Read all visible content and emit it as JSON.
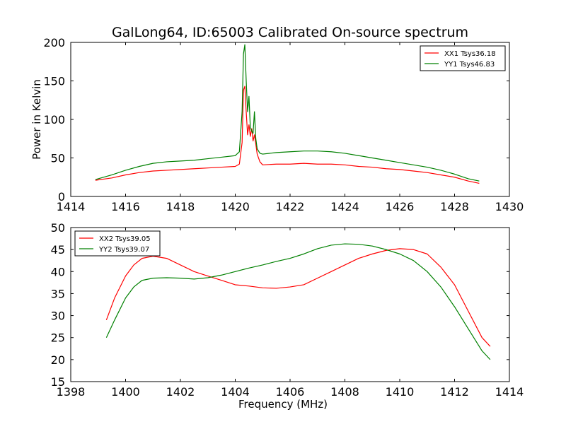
{
  "figure": {
    "title": "GalLong64, ID:65003 Calibrated On-source spectrum"
  },
  "chart_data": [
    {
      "type": "line",
      "title": "GalLong64, ID:65003 Calibrated On-source spectrum",
      "xlabel": "",
      "ylabel": "Power in Kelvin",
      "xlim": [
        1414,
        1430
      ],
      "ylim": [
        0,
        200
      ],
      "xticks": [
        1414,
        1416,
        1418,
        1420,
        1422,
        1424,
        1426,
        1428,
        1430
      ],
      "yticks": [
        0,
        50,
        100,
        150,
        200
      ],
      "grid": false,
      "legend_position": "top-right",
      "series": [
        {
          "name": "XX1 Tsys36.18",
          "color": "#ff0000",
          "x": [
            1414.9,
            1415.5,
            1416.0,
            1416.5,
            1417.0,
            1417.5,
            1418.0,
            1418.5,
            1419.0,
            1419.5,
            1420.0,
            1420.15,
            1420.25,
            1420.3,
            1420.35,
            1420.4,
            1420.45,
            1420.5,
            1420.55,
            1420.6,
            1420.65,
            1420.7,
            1420.75,
            1420.8,
            1420.9,
            1421.0,
            1421.5,
            1422.0,
            1422.5,
            1423.0,
            1423.5,
            1424.0,
            1424.5,
            1425.0,
            1425.5,
            1426.0,
            1426.5,
            1427.0,
            1427.5,
            1428.0,
            1428.5,
            1428.9
          ],
          "y": [
            21,
            24,
            28,
            31,
            33,
            34,
            35,
            36,
            37,
            38,
            39,
            42,
            70,
            138,
            143,
            110,
            80,
            93,
            78,
            88,
            72,
            80,
            68,
            55,
            45,
            41,
            42,
            42,
            43,
            42,
            42,
            41,
            39,
            38,
            36,
            35,
            33,
            31,
            28,
            25,
            20,
            17
          ]
        },
        {
          "name": "YY1 Tsys46.83",
          "color": "#008000",
          "x": [
            1414.9,
            1415.5,
            1416.0,
            1416.5,
            1417.0,
            1417.5,
            1418.0,
            1418.5,
            1419.0,
            1419.5,
            1420.0,
            1420.15,
            1420.25,
            1420.3,
            1420.35,
            1420.4,
            1420.45,
            1420.5,
            1420.55,
            1420.6,
            1420.65,
            1420.7,
            1420.75,
            1420.8,
            1420.9,
            1421.0,
            1421.5,
            1422.0,
            1422.5,
            1423.0,
            1423.5,
            1424.0,
            1424.5,
            1425.0,
            1425.5,
            1426.0,
            1426.5,
            1427.0,
            1427.5,
            1428.0,
            1428.5,
            1428.9
          ],
          "y": [
            22,
            28,
            34,
            39,
            43,
            45,
            46,
            47,
            49,
            51,
            53,
            58,
            110,
            185,
            197,
            150,
            110,
            130,
            90,
            85,
            82,
            110,
            75,
            62,
            56,
            55,
            57,
            58,
            59,
            59,
            58,
            56,
            53,
            50,
            47,
            44,
            41,
            38,
            34,
            29,
            23,
            20
          ]
        }
      ]
    },
    {
      "type": "line",
      "title": "",
      "xlabel": "Frequency (MHz)",
      "ylabel": "",
      "xlim": [
        1398,
        1414
      ],
      "ylim": [
        15,
        50
      ],
      "xticks": [
        1398,
        1400,
        1402,
        1404,
        1406,
        1408,
        1410,
        1412,
        1414
      ],
      "yticks": [
        15,
        20,
        25,
        30,
        35,
        40,
        45,
        50
      ],
      "grid": false,
      "legend_position": "top-left",
      "series": [
        {
          "name": "XX2 Tsys39.05",
          "color": "#ff0000",
          "x": [
            1399.3,
            1399.6,
            1400.0,
            1400.3,
            1400.6,
            1401.0,
            1401.5,
            1402.0,
            1402.5,
            1403.0,
            1403.5,
            1404.0,
            1404.5,
            1405.0,
            1405.5,
            1406.0,
            1406.5,
            1407.0,
            1407.5,
            1408.0,
            1408.5,
            1409.0,
            1409.5,
            1410.0,
            1410.5,
            1411.0,
            1411.5,
            1412.0,
            1412.5,
            1413.0,
            1413.3
          ],
          "y": [
            29,
            34,
            39,
            41.5,
            43,
            43.5,
            43,
            41.5,
            40,
            39,
            38,
            37,
            36.7,
            36.3,
            36.2,
            36.5,
            37,
            38.5,
            40,
            41.5,
            43,
            44,
            44.8,
            45.2,
            45,
            44,
            41,
            37,
            31,
            25,
            23
          ]
        },
        {
          "name": "YY2 Tsys39.07",
          "color": "#008000",
          "x": [
            1399.3,
            1399.6,
            1400.0,
            1400.3,
            1400.6,
            1401.0,
            1401.5,
            1402.0,
            1402.5,
            1403.0,
            1403.5,
            1404.0,
            1404.5,
            1405.0,
            1405.5,
            1406.0,
            1406.5,
            1407.0,
            1407.5,
            1408.0,
            1408.5,
            1409.0,
            1409.5,
            1410.0,
            1410.5,
            1411.0,
            1411.5,
            1412.0,
            1412.5,
            1413.0,
            1413.3
          ],
          "y": [
            25,
            29,
            34,
            36.5,
            38,
            38.5,
            38.6,
            38.5,
            38.3,
            38.6,
            39.2,
            40,
            40.8,
            41.5,
            42.3,
            43,
            44,
            45.2,
            46,
            46.3,
            46.2,
            45.8,
            45,
            44,
            42.5,
            40,
            36.5,
            32,
            27,
            22,
            20
          ]
        }
      ]
    }
  ]
}
